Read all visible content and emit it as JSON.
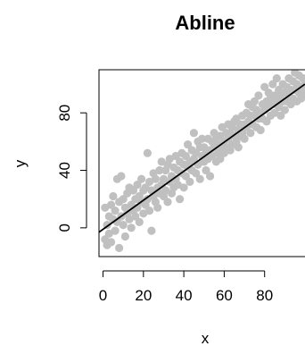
{
  "chart_data": {
    "type": "scatter",
    "title": "Abline",
    "xlabel": "x",
    "ylabel": "y",
    "xlim": [
      -2,
      100
    ],
    "ylim": [
      -20,
      110
    ],
    "xticks": [
      0,
      20,
      40,
      60,
      80
    ],
    "yticks": [
      0,
      40,
      80
    ],
    "grid": false,
    "point_color": "#c0c0c0",
    "line_color": "#000000",
    "fit_line": {
      "intercept": -1,
      "slope": 1.01
    },
    "points": [
      [
        1,
        -8
      ],
      [
        1,
        14
      ],
      [
        2,
        2
      ],
      [
        2,
        -12
      ],
      [
        3,
        8
      ],
      [
        3,
        -4
      ],
      [
        4,
        16
      ],
      [
        4,
        -10
      ],
      [
        5,
        6
      ],
      [
        5,
        22
      ],
      [
        6,
        -2
      ],
      [
        6,
        12
      ],
      [
        7,
        34
      ],
      [
        7,
        4
      ],
      [
        8,
        -14
      ],
      [
        8,
        18
      ],
      [
        9,
        36
      ],
      [
        9,
        8
      ],
      [
        10,
        2
      ],
      [
        10,
        20
      ],
      [
        11,
        14
      ],
      [
        11,
        -6
      ],
      [
        12,
        24
      ],
      [
        12,
        10
      ],
      [
        13,
        6
      ],
      [
        13,
        28
      ],
      [
        14,
        16
      ],
      [
        14,
        0
      ],
      [
        15,
        12
      ],
      [
        15,
        26
      ],
      [
        16,
        20
      ],
      [
        16,
        8
      ],
      [
        17,
        30
      ],
      [
        17,
        14
      ],
      [
        18,
        4
      ],
      [
        18,
        22
      ],
      [
        19,
        34
      ],
      [
        19,
        18
      ],
      [
        20,
        10
      ],
      [
        20,
        26
      ],
      [
        21,
        28
      ],
      [
        21,
        16
      ],
      [
        22,
        20
      ],
      [
        22,
        52
      ],
      [
        23,
        12
      ],
      [
        23,
        32
      ],
      [
        24,
        -2
      ],
      [
        24,
        26
      ],
      [
        25,
        38
      ],
      [
        25,
        22
      ],
      [
        26,
        18
      ],
      [
        26,
        34
      ],
      [
        27,
        28
      ],
      [
        27,
        14
      ],
      [
        28,
        40
      ],
      [
        28,
        24
      ],
      [
        29,
        30
      ],
      [
        29,
        46
      ],
      [
        30,
        22
      ],
      [
        30,
        34
      ],
      [
        31,
        26
      ],
      [
        31,
        40
      ],
      [
        32,
        44
      ],
      [
        32,
        18
      ],
      [
        33,
        32
      ],
      [
        33,
        48
      ],
      [
        34,
        36
      ],
      [
        34,
        24
      ],
      [
        35,
        42
      ],
      [
        35,
        28
      ],
      [
        36,
        50
      ],
      [
        36,
        34
      ],
      [
        37,
        30
      ],
      [
        37,
        40
      ],
      [
        38,
        46
      ],
      [
        38,
        20
      ],
      [
        39,
        38
      ],
      [
        39,
        52
      ],
      [
        40,
        44
      ],
      [
        40,
        28
      ],
      [
        41,
        36
      ],
      [
        41,
        50
      ],
      [
        42,
        42
      ],
      [
        42,
        58
      ],
      [
        43,
        32
      ],
      [
        43,
        46
      ],
      [
        44,
        54
      ],
      [
        44,
        40
      ],
      [
        45,
        48
      ],
      [
        45,
        66
      ],
      [
        46,
        38
      ],
      [
        46,
        52
      ],
      [
        47,
        44
      ],
      [
        47,
        60
      ],
      [
        48,
        56
      ],
      [
        48,
        34
      ],
      [
        49,
        50
      ],
      [
        49,
        62
      ],
      [
        50,
        46
      ],
      [
        50,
        56
      ],
      [
        51,
        40
      ],
      [
        51,
        52
      ],
      [
        52,
        62
      ],
      [
        52,
        48
      ],
      [
        53,
        54
      ],
      [
        53,
        36
      ],
      [
        54,
        60
      ],
      [
        54,
        50
      ],
      [
        55,
        56
      ],
      [
        55,
        66
      ],
      [
        56,
        46
      ],
      [
        56,
        62
      ],
      [
        57,
        58
      ],
      [
        57,
        52
      ],
      [
        58,
        64
      ],
      [
        58,
        48
      ],
      [
        59,
        56
      ],
      [
        59,
        70
      ],
      [
        60,
        60
      ],
      [
        60,
        52
      ],
      [
        61,
        66
      ],
      [
        61,
        56
      ],
      [
        62,
        62
      ],
      [
        62,
        72
      ],
      [
        63,
        54
      ],
      [
        63,
        66
      ],
      [
        64,
        70
      ],
      [
        64,
        58
      ],
      [
        65,
        64
      ],
      [
        65,
        74
      ],
      [
        66,
        60
      ],
      [
        66,
        76
      ],
      [
        67,
        68
      ],
      [
        67,
        56
      ],
      [
        68,
        72
      ],
      [
        68,
        64
      ],
      [
        69,
        78
      ],
      [
        69,
        66
      ],
      [
        70,
        72
      ],
      [
        70,
        62
      ],
      [
        71,
        80
      ],
      [
        71,
        70
      ],
      [
        72,
        74
      ],
      [
        72,
        86
      ],
      [
        73,
        66
      ],
      [
        73,
        78
      ],
      [
        74,
        84
      ],
      [
        74,
        72
      ],
      [
        75,
        78
      ],
      [
        75,
        88
      ],
      [
        76,
        70
      ],
      [
        76,
        82
      ],
      [
        77,
        76
      ],
      [
        77,
        92
      ],
      [
        78,
        80
      ],
      [
        78,
        68
      ],
      [
        79,
        86
      ],
      [
        79,
        76
      ],
      [
        80,
        82
      ],
      [
        80,
        98
      ],
      [
        81,
        74
      ],
      [
        81,
        88
      ],
      [
        82,
        84
      ],
      [
        82,
        94
      ],
      [
        83,
        90
      ],
      [
        83,
        78
      ],
      [
        84,
        86
      ],
      [
        84,
        100
      ],
      [
        85,
        80
      ],
      [
        85,
        92
      ],
      [
        86,
        88
      ],
      [
        86,
        104
      ],
      [
        87,
        84
      ],
      [
        87,
        96
      ],
      [
        88,
        92
      ],
      [
        88,
        78
      ],
      [
        89,
        100
      ],
      [
        89,
        88
      ],
      [
        90,
        94
      ],
      [
        90,
        82
      ],
      [
        91,
        98
      ],
      [
        91,
        88
      ],
      [
        92,
        104
      ],
      [
        92,
        92
      ],
      [
        93,
        96
      ],
      [
        93,
        86
      ],
      [
        94,
        102
      ],
      [
        94,
        90
      ],
      [
        95,
        108
      ],
      [
        95,
        96
      ],
      [
        96,
        88
      ],
      [
        96,
        100
      ],
      [
        97,
        94
      ],
      [
        97,
        106
      ],
      [
        98,
        98
      ],
      [
        98,
        90
      ],
      [
        99,
        104
      ],
      [
        99,
        96
      ],
      [
        100,
        100
      ],
      [
        100,
        92
      ]
    ]
  }
}
